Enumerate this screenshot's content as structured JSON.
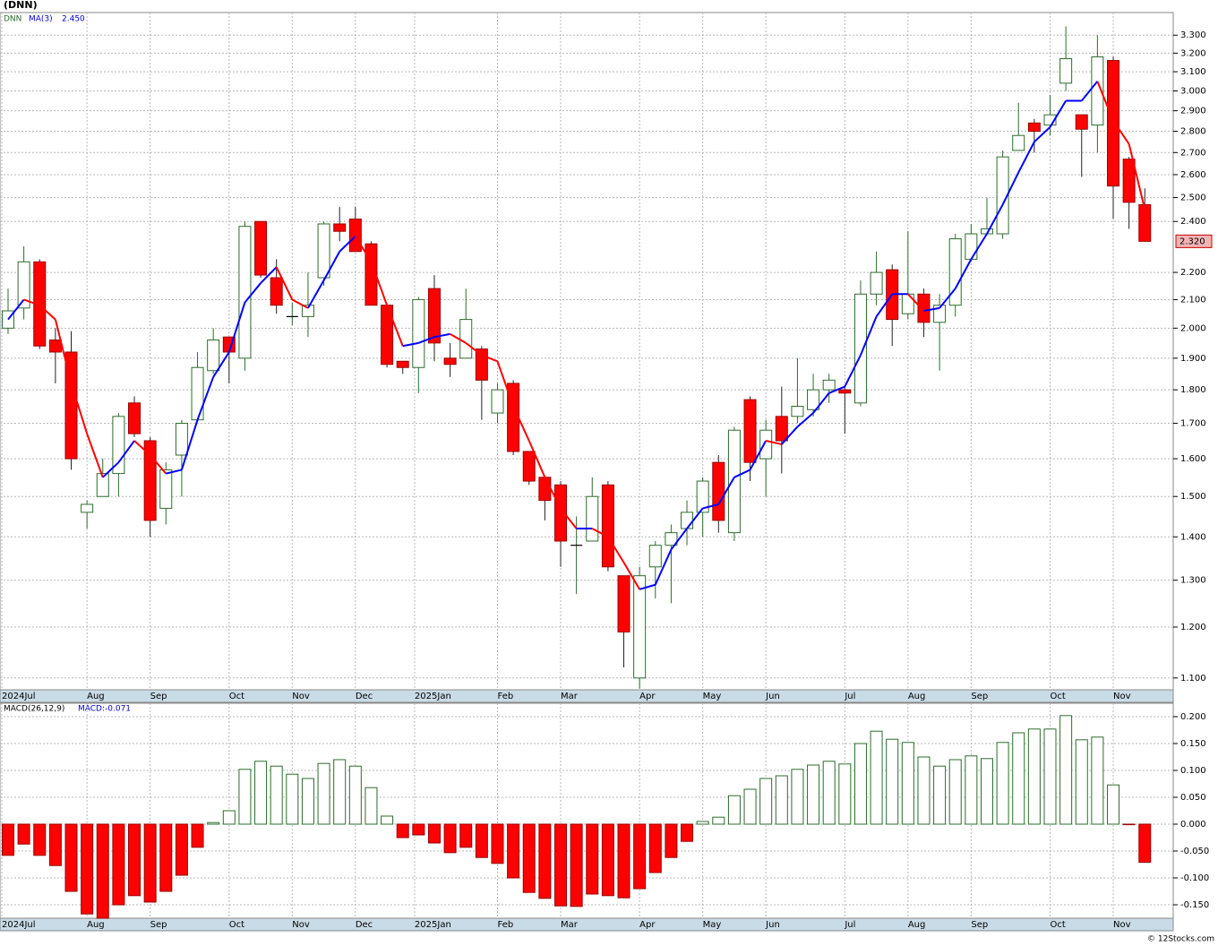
{
  "copyright": "© 12Stocks.com",
  "chart_data": [
    {
      "type": "candlestick",
      "title": "(DNN)",
      "symbol": "DNN",
      "ma_name": "MA(3)",
      "ma_label": "2.450",
      "open": [
        2.0,
        2.07,
        2.24,
        1.96,
        1.92,
        1.46,
        1.5,
        1.56,
        1.76,
        1.65,
        1.47,
        1.61,
        1.71,
        1.86,
        1.97,
        1.9,
        2.4,
        2.18,
        2.04,
        2.04,
        2.18,
        2.39,
        2.41,
        2.31,
        2.08,
        1.89,
        1.87,
        2.14,
        1.9,
        1.9,
        1.93,
        1.73,
        1.82,
        1.62,
        1.55,
        1.53,
        1.38,
        1.39,
        1.53,
        1.31,
        1.1,
        1.33,
        1.38,
        1.42,
        1.46,
        1.59,
        1.41,
        1.77,
        1.6,
        1.72,
        1.72,
        1.74,
        1.8,
        1.8,
        1.76,
        2.12,
        2.21,
        2.05,
        2.12,
        2.02,
        2.08,
        2.25,
        2.35,
        2.35,
        2.71,
        2.84,
        2.83,
        3.04,
        2.88,
        2.83,
        3.16,
        2.67,
        2.47
      ],
      "high": [
        2.14,
        2.3,
        2.25,
        2.0,
        1.99,
        1.49,
        1.6,
        1.73,
        1.78,
        1.66,
        1.59,
        1.71,
        1.92,
        2.0,
        1.97,
        2.4,
        2.4,
        2.25,
        2.09,
        2.2,
        2.4,
        2.46,
        2.46,
        2.32,
        2.08,
        1.89,
        2.11,
        2.19,
        1.95,
        2.14,
        1.94,
        1.82,
        1.83,
        1.62,
        1.55,
        1.54,
        1.45,
        1.55,
        1.54,
        1.31,
        1.33,
        1.39,
        1.43,
        1.49,
        1.55,
        1.61,
        1.69,
        1.78,
        1.71,
        1.81,
        1.9,
        1.85,
        1.85,
        1.81,
        2.17,
        2.28,
        2.23,
        2.36,
        2.14,
        2.12,
        2.35,
        2.39,
        2.5,
        2.71,
        2.94,
        2.86,
        2.98,
        3.35,
        2.88,
        3.3,
        3.18,
        2.68,
        2.54
      ],
      "low": [
        1.98,
        2.03,
        1.93,
        1.82,
        1.57,
        1.42,
        1.5,
        1.5,
        1.66,
        1.4,
        1.43,
        1.5,
        1.71,
        1.85,
        1.82,
        1.86,
        2.18,
        2.05,
        2.01,
        1.97,
        2.15,
        2.32,
        2.28,
        2.08,
        1.87,
        1.85,
        1.79,
        1.89,
        1.84,
        1.9,
        1.71,
        1.7,
        1.61,
        1.53,
        1.44,
        1.33,
        1.27,
        1.39,
        1.32,
        1.12,
        1.08,
        1.26,
        1.25,
        1.38,
        1.4,
        1.41,
        1.39,
        1.54,
        1.5,
        1.56,
        1.7,
        1.72,
        1.76,
        1.67,
        1.75,
        2.08,
        1.94,
        2.03,
        1.97,
        1.86,
        2.04,
        2.24,
        2.35,
        2.33,
        2.71,
        2.7,
        2.78,
        3.0,
        2.59,
        2.7,
        2.41,
        2.37,
        2.32
      ],
      "close": [
        2.06,
        2.24,
        1.94,
        1.92,
        1.6,
        1.48,
        1.56,
        1.72,
        1.67,
        1.44,
        1.57,
        1.7,
        1.87,
        1.96,
        1.92,
        2.38,
        2.19,
        2.08,
        2.04,
        2.08,
        2.39,
        2.36,
        2.28,
        2.08,
        1.88,
        1.87,
        2.1,
        1.95,
        1.88,
        2.03,
        1.83,
        1.8,
        1.62,
        1.54,
        1.49,
        1.39,
        1.38,
        1.5,
        1.33,
        1.19,
        1.31,
        1.38,
        1.41,
        1.46,
        1.54,
        1.44,
        1.68,
        1.59,
        1.68,
        1.65,
        1.75,
        1.8,
        1.83,
        1.79,
        2.12,
        2.2,
        2.03,
        2.12,
        2.02,
        2.08,
        2.33,
        2.35,
        2.37,
        2.68,
        2.78,
        2.8,
        2.88,
        3.17,
        2.81,
        3.18,
        2.55,
        2.48,
        2.32
      ],
      "ma": [
        2.03,
        2.1,
        2.08,
        2.03,
        1.82,
        1.67,
        1.55,
        1.59,
        1.65,
        1.61,
        1.56,
        1.57,
        1.71,
        1.84,
        1.92,
        2.09,
        2.16,
        2.22,
        2.1,
        2.07,
        2.17,
        2.28,
        2.34,
        2.24,
        2.08,
        1.94,
        1.95,
        1.97,
        1.98,
        1.95,
        1.91,
        1.89,
        1.75,
        1.65,
        1.55,
        1.47,
        1.42,
        1.42,
        1.4,
        1.34,
        1.28,
        1.29,
        1.37,
        1.42,
        1.47,
        1.48,
        1.55,
        1.57,
        1.65,
        1.64,
        1.69,
        1.73,
        1.79,
        1.81,
        1.91,
        2.04,
        2.12,
        2.12,
        2.06,
        2.07,
        2.14,
        2.25,
        2.35,
        2.47,
        2.61,
        2.75,
        2.82,
        2.95,
        2.95,
        3.05,
        2.85,
        2.74,
        2.45
      ],
      "up_color": "#ffffff",
      "up_edge": "#2e6b2e",
      "down_color": "#ff0000",
      "down_edge": "#990000",
      "ma_up_color": "#0000ff",
      "ma_down_color": "#ff0000",
      "log_scale": true,
      "grid": true,
      "ylim": [
        1.078,
        3.43
      ],
      "yticks": [
        {
          "value": 1.1,
          "label": "1.100"
        },
        {
          "value": 1.2,
          "label": "1.200"
        },
        {
          "value": 1.3,
          "label": "1.300"
        },
        {
          "value": 1.4,
          "label": "1.400"
        },
        {
          "value": 1.5,
          "label": "1.500"
        },
        {
          "value": 1.6,
          "label": "1.600"
        },
        {
          "value": 1.7,
          "label": "1.700"
        },
        {
          "value": 1.8,
          "label": "1.800"
        },
        {
          "value": 1.9,
          "label": "1.900"
        },
        {
          "value": 2.0,
          "label": "2.000"
        },
        {
          "value": 2.1,
          "label": "2.100"
        },
        {
          "value": 2.2,
          "label": "2.200"
        },
        {
          "value": 2.4,
          "label": "2.400"
        },
        {
          "value": 2.5,
          "label": "2.500"
        },
        {
          "value": 2.6,
          "label": "2.600"
        },
        {
          "value": 2.7,
          "label": "2.700"
        },
        {
          "value": 2.8,
          "label": "2.800"
        },
        {
          "value": 2.9,
          "label": "2.900"
        },
        {
          "value": 3.0,
          "label": "3.000"
        },
        {
          "value": 3.1,
          "label": "3.100"
        },
        {
          "value": 3.2,
          "label": "3.200"
        },
        {
          "value": 3.3,
          "label": "3.300"
        }
      ],
      "last_price": {
        "value": 2.32,
        "label": "2.320"
      },
      "xlim": [
        -0.51,
        73.8
      ],
      "xticks": [
        {
          "value": -0.4,
          "label": "2024Jul"
        },
        {
          "value": 5,
          "label": "Aug"
        },
        {
          "value": 9,
          "label": "Sep"
        },
        {
          "value": 14,
          "label": "Oct"
        },
        {
          "value": 18,
          "label": "Nov"
        },
        {
          "value": 22,
          "label": "Dec"
        },
        {
          "value": 25.75,
          "label": "2025Jan"
        },
        {
          "value": 31,
          "label": "Feb"
        },
        {
          "value": 35,
          "label": "Mar"
        },
        {
          "value": 40,
          "label": "Apr"
        },
        {
          "value": 44,
          "label": "May"
        },
        {
          "value": 48,
          "label": "Jun"
        },
        {
          "value": 53,
          "label": "Jul"
        },
        {
          "value": 57,
          "label": "Aug"
        },
        {
          "value": 61,
          "label": "Sep"
        },
        {
          "value": 66,
          "label": "Oct"
        },
        {
          "value": 70,
          "label": "Nov"
        }
      ]
    },
    {
      "type": "bar",
      "title": "MACD(26,12,9)",
      "value_label": "MACD:-0.071",
      "values": [
        -0.058,
        -0.037,
        -0.058,
        -0.077,
        -0.125,
        -0.167,
        -0.175,
        -0.15,
        -0.133,
        -0.145,
        -0.125,
        -0.095,
        -0.043,
        0.003,
        0.025,
        0.102,
        0.117,
        0.108,
        0.093,
        0.085,
        0.113,
        0.12,
        0.108,
        0.068,
        0.015,
        -0.025,
        -0.02,
        -0.035,
        -0.053,
        -0.043,
        -0.062,
        -0.073,
        -0.1,
        -0.127,
        -0.138,
        -0.152,
        -0.153,
        -0.13,
        -0.133,
        -0.137,
        -0.12,
        -0.09,
        -0.062,
        -0.032,
        0.005,
        0.013,
        0.053,
        0.065,
        0.085,
        0.09,
        0.102,
        0.11,
        0.117,
        0.112,
        0.15,
        0.173,
        0.158,
        0.152,
        0.125,
        0.108,
        0.12,
        0.127,
        0.122,
        0.152,
        0.17,
        0.177,
        0.177,
        0.202,
        0.157,
        0.162,
        0.073,
        -0.001,
        -0.071
      ],
      "pos_color": "#ffffff",
      "pos_edge": "#2e6b2e",
      "neg_color": "#ff0000",
      "neg_edge": "#990000",
      "grid": true,
      "ylim": [
        -0.175,
        0.225
      ],
      "yticks": [
        {
          "value": -0.15,
          "label": "-0.150"
        },
        {
          "value": -0.1,
          "label": "-0.100"
        },
        {
          "value": -0.05,
          "label": "-0.050"
        },
        {
          "value": 0,
          "label": "0.000"
        },
        {
          "value": 0.05,
          "label": "0.050"
        },
        {
          "value": 0.1,
          "label": "0.100"
        },
        {
          "value": 0.15,
          "label": "0.150"
        },
        {
          "value": 0.2,
          "label": "0.200"
        }
      ],
      "xlim": [
        -0.51,
        73.8
      ],
      "xticks": [
        {
          "value": -0.4,
          "label": "2024Jul"
        },
        {
          "value": 5,
          "label": "Aug"
        },
        {
          "value": 9,
          "label": "Sep"
        },
        {
          "value": 14,
          "label": "Oct"
        },
        {
          "value": 18,
          "label": "Nov"
        },
        {
          "value": 22,
          "label": "Dec"
        },
        {
          "value": 25.75,
          "label": "2025Jan"
        },
        {
          "value": 31,
          "label": "Feb"
        },
        {
          "value": 35,
          "label": "Mar"
        },
        {
          "value": 40,
          "label": "Apr"
        },
        {
          "value": 44,
          "label": "May"
        },
        {
          "value": 48,
          "label": "Jun"
        },
        {
          "value": 53,
          "label": "Jul"
        },
        {
          "value": 57,
          "label": "Aug"
        },
        {
          "value": 61,
          "label": "Sep"
        },
        {
          "value": 66,
          "label": "Oct"
        },
        {
          "value": 70,
          "label": "Nov"
        }
      ]
    }
  ]
}
